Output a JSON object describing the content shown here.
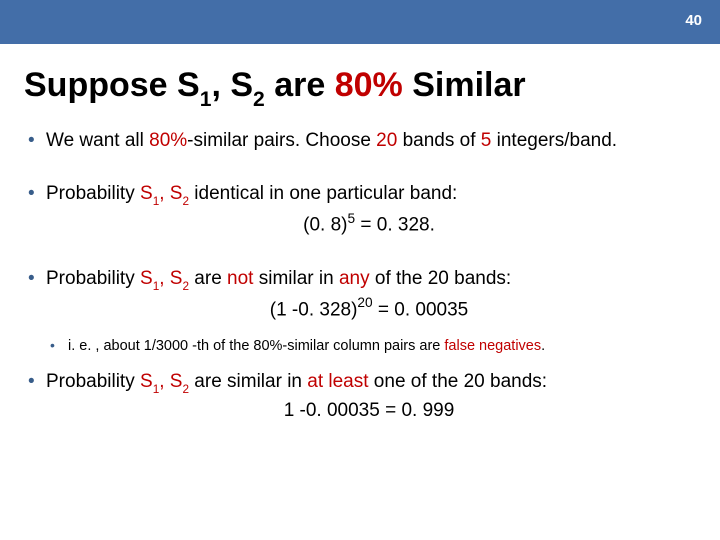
{
  "colors": {
    "topbar_bg": "#436ea8",
    "accent": "#c00000",
    "bullet": "#385d8a",
    "text": "#000000",
    "bg": "#ffffff"
  },
  "page_number": "40",
  "title": {
    "pre": "Suppose S",
    "sub1": "1",
    "mid": ", S",
    "sub2": "2",
    "after": " are ",
    "highlight": "80%",
    "tail": " Similar"
  },
  "b1": {
    "a": "We want all ",
    "hl1": "80%",
    "b": "-similar pairs. Choose ",
    "hl2": "20",
    "c": " bands of ",
    "hl3": "5",
    "d": " integers/band."
  },
  "b2": {
    "a": "Probability ",
    "s": "S",
    "sub1": "1",
    "mid": ", S",
    "sub2": "2",
    "b": " identical in one particular band:",
    "eq_a": "(0. 8)",
    "eq_sup": "5",
    "eq_b": " = 0. 328."
  },
  "b3": {
    "a": "Probability ",
    "s": "S",
    "sub1": "1",
    "mid": ", S",
    "sub2": "2",
    "b": " are ",
    "hl1": "not",
    "c": "  similar in ",
    "hl2": "any",
    "d": " of the 20 bands:",
    "eq_a": "(1 -0. 328)",
    "eq_sup": "20",
    "eq_b": " = 0. 00035"
  },
  "b3n": {
    "a": "i. e. , about 1/3000 -th of the 80%-similar column pairs are ",
    "hl": "false negatives",
    "b": "."
  },
  "b4": {
    "a": "Probability ",
    "s": "S",
    "sub1": "1",
    "mid": ", S",
    "sub2": "2",
    "b": " are similar in ",
    "hl": "at least",
    "c": " one of the 20 bands:",
    "eq": "1 -0. 00035 = 0. 999"
  }
}
